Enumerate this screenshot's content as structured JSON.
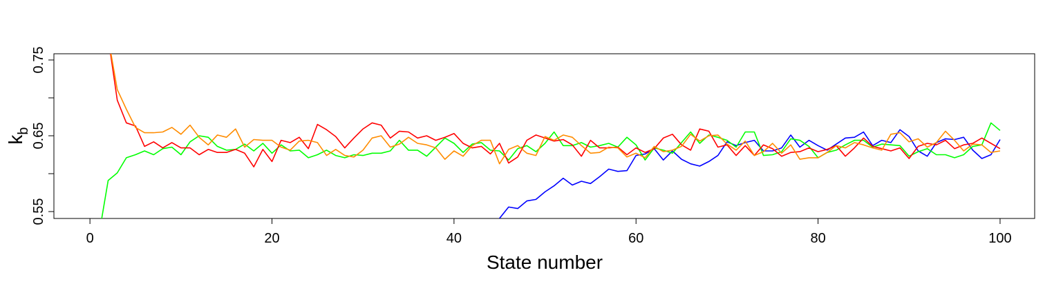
{
  "chart_data": {
    "type": "line",
    "xlabel": "State number",
    "ylabel": "k",
    "ylabel_sub": "b",
    "x": [
      0,
      1,
      2,
      3,
      4,
      5,
      6,
      7,
      8,
      9,
      10,
      11,
      12,
      13,
      14,
      15,
      16,
      17,
      18,
      19,
      20,
      21,
      22,
      23,
      24,
      25,
      26,
      27,
      28,
      29,
      30,
      31,
      32,
      33,
      34,
      35,
      36,
      37,
      38,
      39,
      40,
      41,
      42,
      43,
      44,
      45,
      46,
      47,
      48,
      49,
      50,
      51,
      52,
      53,
      54,
      55,
      56,
      57,
      58,
      59,
      60,
      61,
      62,
      63,
      64,
      65,
      66,
      67,
      68,
      69,
      70,
      71,
      72,
      73,
      74,
      75,
      76,
      77,
      78,
      79,
      80,
      81,
      82,
      83,
      84,
      85,
      86,
      87,
      88,
      89,
      90,
      91,
      92,
      93,
      94,
      95,
      96,
      97,
      98,
      99,
      100
    ],
    "xlim": [
      -3.96,
      103.8
    ],
    "xticks": [
      0,
      20,
      40,
      60,
      80,
      100
    ],
    "ylim": [
      0.5409,
      0.7582
    ],
    "yticks": [
      0.55,
      {
        "value": 0.6,
        "label": null
      },
      0.65,
      {
        "value": 0.7,
        "label": null
      },
      0.75
    ],
    "series": [
      {
        "color": "#0000ff",
        "values": [
          null,
          null,
          null,
          null,
          null,
          null,
          null,
          null,
          null,
          null,
          null,
          null,
          null,
          null,
          null,
          null,
          null,
          null,
          null,
          null,
          null,
          null,
          null,
          null,
          null,
          null,
          null,
          null,
          null,
          null,
          null,
          null,
          null,
          null,
          null,
          null,
          null,
          null,
          null,
          null,
          null,
          null,
          null,
          null,
          null,
          0.541,
          0.556,
          0.554,
          0.564,
          0.566,
          0.576,
          0.584,
          0.594,
          0.585,
          0.59,
          0.587,
          0.596,
          0.606,
          0.603,
          0.604,
          0.624,
          0.626,
          0.633,
          0.618,
          0.63,
          0.619,
          0.613,
          0.61,
          0.616,
          0.624,
          0.642,
          0.637,
          0.641,
          0.644,
          0.63,
          0.63,
          0.634,
          0.651,
          0.635,
          0.644,
          0.637,
          0.631,
          0.639,
          0.647,
          0.648,
          0.655,
          0.637,
          0.644,
          0.641,
          0.658,
          0.649,
          0.63,
          0.623,
          0.641,
          0.646,
          0.645,
          0.648,
          0.631,
          0.62,
          0.625,
          0.645
        ]
      },
      {
        "color": "#00ff00",
        "values": [
          null,
          0.52,
          0.591,
          0.601,
          0.621,
          0.625,
          0.63,
          0.625,
          0.633,
          0.635,
          0.625,
          0.642,
          0.65,
          0.648,
          0.636,
          0.631,
          0.632,
          0.639,
          0.63,
          0.64,
          0.627,
          0.638,
          0.63,
          0.631,
          0.621,
          0.625,
          0.631,
          0.624,
          0.621,
          0.625,
          0.624,
          0.627,
          0.627,
          0.63,
          0.644,
          0.631,
          0.631,
          0.623,
          0.635,
          0.647,
          0.64,
          0.628,
          0.639,
          0.641,
          0.631,
          0.63,
          0.618,
          0.633,
          0.637,
          0.629,
          0.64,
          0.655,
          0.637,
          0.637,
          0.641,
          0.635,
          0.637,
          0.64,
          0.635,
          0.648,
          0.638,
          0.618,
          0.634,
          0.631,
          0.627,
          0.641,
          0.655,
          0.64,
          0.651,
          0.648,
          0.644,
          0.635,
          0.655,
          0.655,
          0.624,
          0.625,
          0.629,
          0.646,
          0.644,
          0.636,
          0.621,
          0.628,
          0.631,
          0.638,
          0.644,
          0.644,
          0.635,
          0.639,
          0.638,
          0.637,
          0.623,
          0.629,
          0.633,
          0.625,
          0.625,
          0.621,
          0.625,
          0.636,
          0.638,
          0.667,
          0.657
        ]
      },
      {
        "color": "#ff0000",
        "values": [
          null,
          null,
          0.78,
          0.697,
          0.667,
          0.663,
          0.636,
          0.642,
          0.634,
          0.641,
          0.634,
          0.634,
          0.625,
          0.632,
          0.628,
          0.628,
          0.632,
          0.627,
          0.609,
          0.632,
          0.616,
          0.644,
          0.641,
          0.648,
          0.633,
          0.665,
          0.658,
          0.649,
          0.634,
          0.647,
          0.659,
          0.667,
          0.664,
          0.647,
          0.656,
          0.655,
          0.647,
          0.65,
          0.644,
          0.648,
          0.653,
          0.64,
          0.634,
          0.636,
          0.626,
          0.64,
          0.614,
          0.622,
          0.644,
          0.651,
          0.647,
          0.643,
          0.645,
          0.638,
          0.623,
          0.644,
          0.634,
          0.634,
          0.635,
          0.625,
          0.634,
          0.628,
          0.633,
          0.647,
          0.652,
          0.638,
          0.631,
          0.659,
          0.656,
          0.635,
          0.638,
          0.624,
          0.637,
          0.624,
          0.638,
          0.633,
          0.623,
          0.628,
          0.629,
          0.634,
          0.629,
          0.632,
          0.637,
          0.623,
          0.634,
          0.647,
          0.636,
          0.633,
          0.63,
          0.634,
          0.62,
          0.636,
          0.64,
          0.638,
          0.644,
          0.633,
          0.638,
          0.64,
          0.647,
          0.64,
          0.633
        ]
      },
      {
        "color": "#ff8c00",
        "values": [
          null,
          null,
          0.78,
          0.711,
          0.685,
          0.661,
          0.654,
          0.654,
          0.655,
          0.661,
          0.652,
          0.664,
          0.648,
          0.638,
          0.651,
          0.648,
          0.659,
          0.635,
          0.645,
          0.644,
          0.644,
          0.635,
          0.631,
          0.643,
          0.644,
          0.641,
          0.624,
          0.632,
          0.624,
          0.622,
          0.631,
          0.647,
          0.65,
          0.635,
          0.639,
          0.648,
          0.64,
          0.638,
          0.634,
          0.619,
          0.63,
          0.623,
          0.637,
          0.644,
          0.644,
          0.613,
          0.632,
          0.637,
          0.627,
          0.624,
          0.649,
          0.644,
          0.651,
          0.648,
          0.637,
          0.627,
          0.628,
          0.635,
          0.634,
          0.622,
          0.627,
          0.621,
          0.636,
          0.629,
          0.631,
          0.636,
          0.652,
          0.643,
          0.65,
          0.651,
          0.639,
          0.631,
          0.643,
          0.624,
          0.629,
          0.64,
          0.627,
          0.638,
          0.619,
          0.621,
          0.621,
          0.628,
          0.637,
          0.634,
          0.641,
          0.638,
          0.634,
          0.631,
          0.652,
          0.654,
          0.642,
          0.646,
          0.635,
          0.641,
          0.656,
          0.644,
          0.63,
          0.639,
          0.638,
          0.628,
          0.63
        ]
      }
    ]
  }
}
